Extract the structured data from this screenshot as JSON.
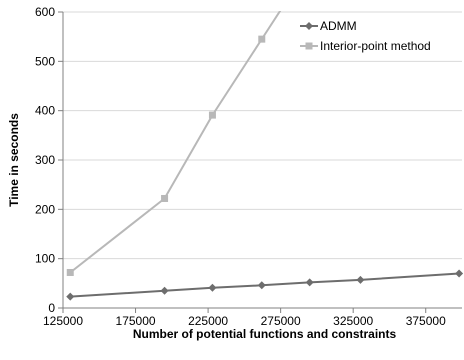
{
  "chart_data": {
    "type": "line",
    "title": "",
    "xlabel": "Number of potential functions and constraints",
    "ylabel": "Time in seconds",
    "xlim": [
      125000,
      400000
    ],
    "ylim": [
      0,
      600
    ],
    "x_ticks": [
      125000,
      175000,
      225000,
      275000,
      325000,
      375000
    ],
    "x_tick_labels": [
      "125000",
      "175000",
      "225000",
      "275000",
      "325000",
      "375000"
    ],
    "y_ticks": [
      0,
      100,
      200,
      300,
      400,
      500,
      600
    ],
    "y_tick_labels": [
      "0",
      "100",
      "200",
      "300",
      "400",
      "500",
      "600"
    ],
    "grid": "horizontal",
    "legend_position": "top-right",
    "series": [
      {
        "name": "ADMM",
        "color": "#6d6d6d",
        "marker": "diamond",
        "x": [
          130000,
          195000,
          228000,
          262000,
          295000,
          330000,
          398000
        ],
        "y": [
          23,
          35,
          41,
          46,
          52,
          57,
          70
        ]
      },
      {
        "name": "Interior-point method",
        "color": "#b8b8b8",
        "marker": "square",
        "x": [
          130000,
          195000,
          228000,
          262000
        ],
        "y": [
          72,
          222,
          391,
          545
        ]
      }
    ]
  }
}
